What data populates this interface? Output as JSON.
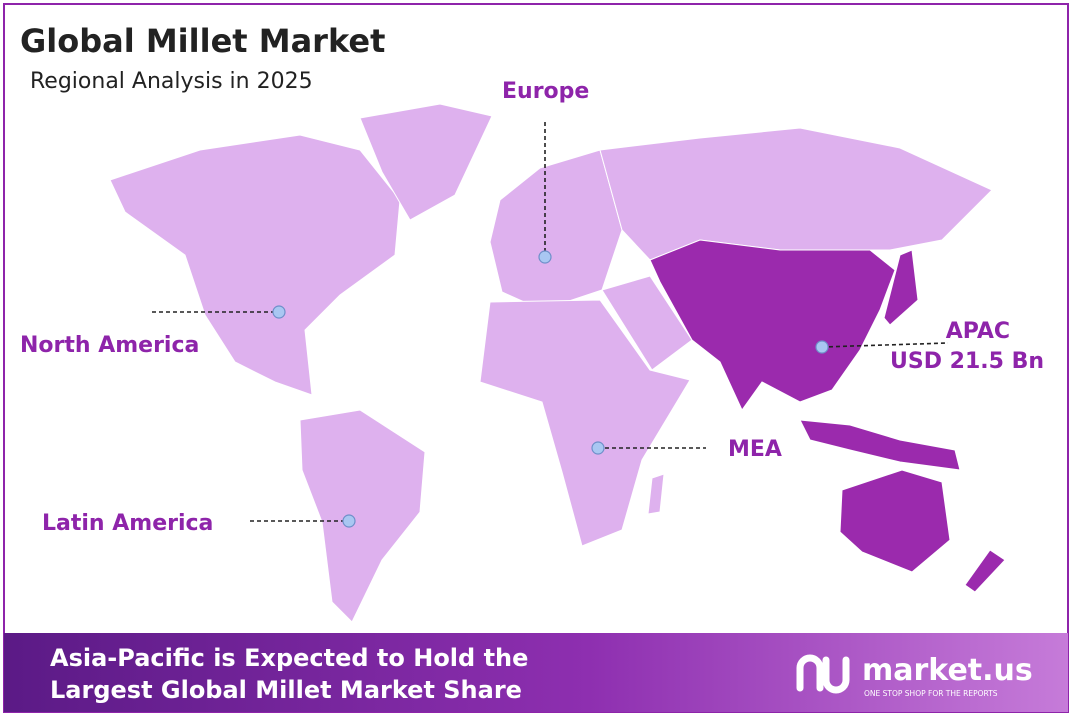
{
  "header": {
    "title": "Global Millet Market",
    "subtitle": "Regional Analysis in 2025"
  },
  "regions": [
    {
      "label": "North America"
    },
    {
      "label": "Europe"
    },
    {
      "label": "APAC",
      "value": "USD 21.5 Bn"
    },
    {
      "label": "MEA"
    },
    {
      "label": "Latin America"
    }
  ],
  "footer": {
    "lines": [
      "Asia-Pacific is Expected to Hold the",
      "Largest Global Millet Market Share"
    ]
  },
  "logo": {
    "name": "market.us",
    "tagline": "ONE STOP SHOP FOR THE REPORTS"
  }
}
